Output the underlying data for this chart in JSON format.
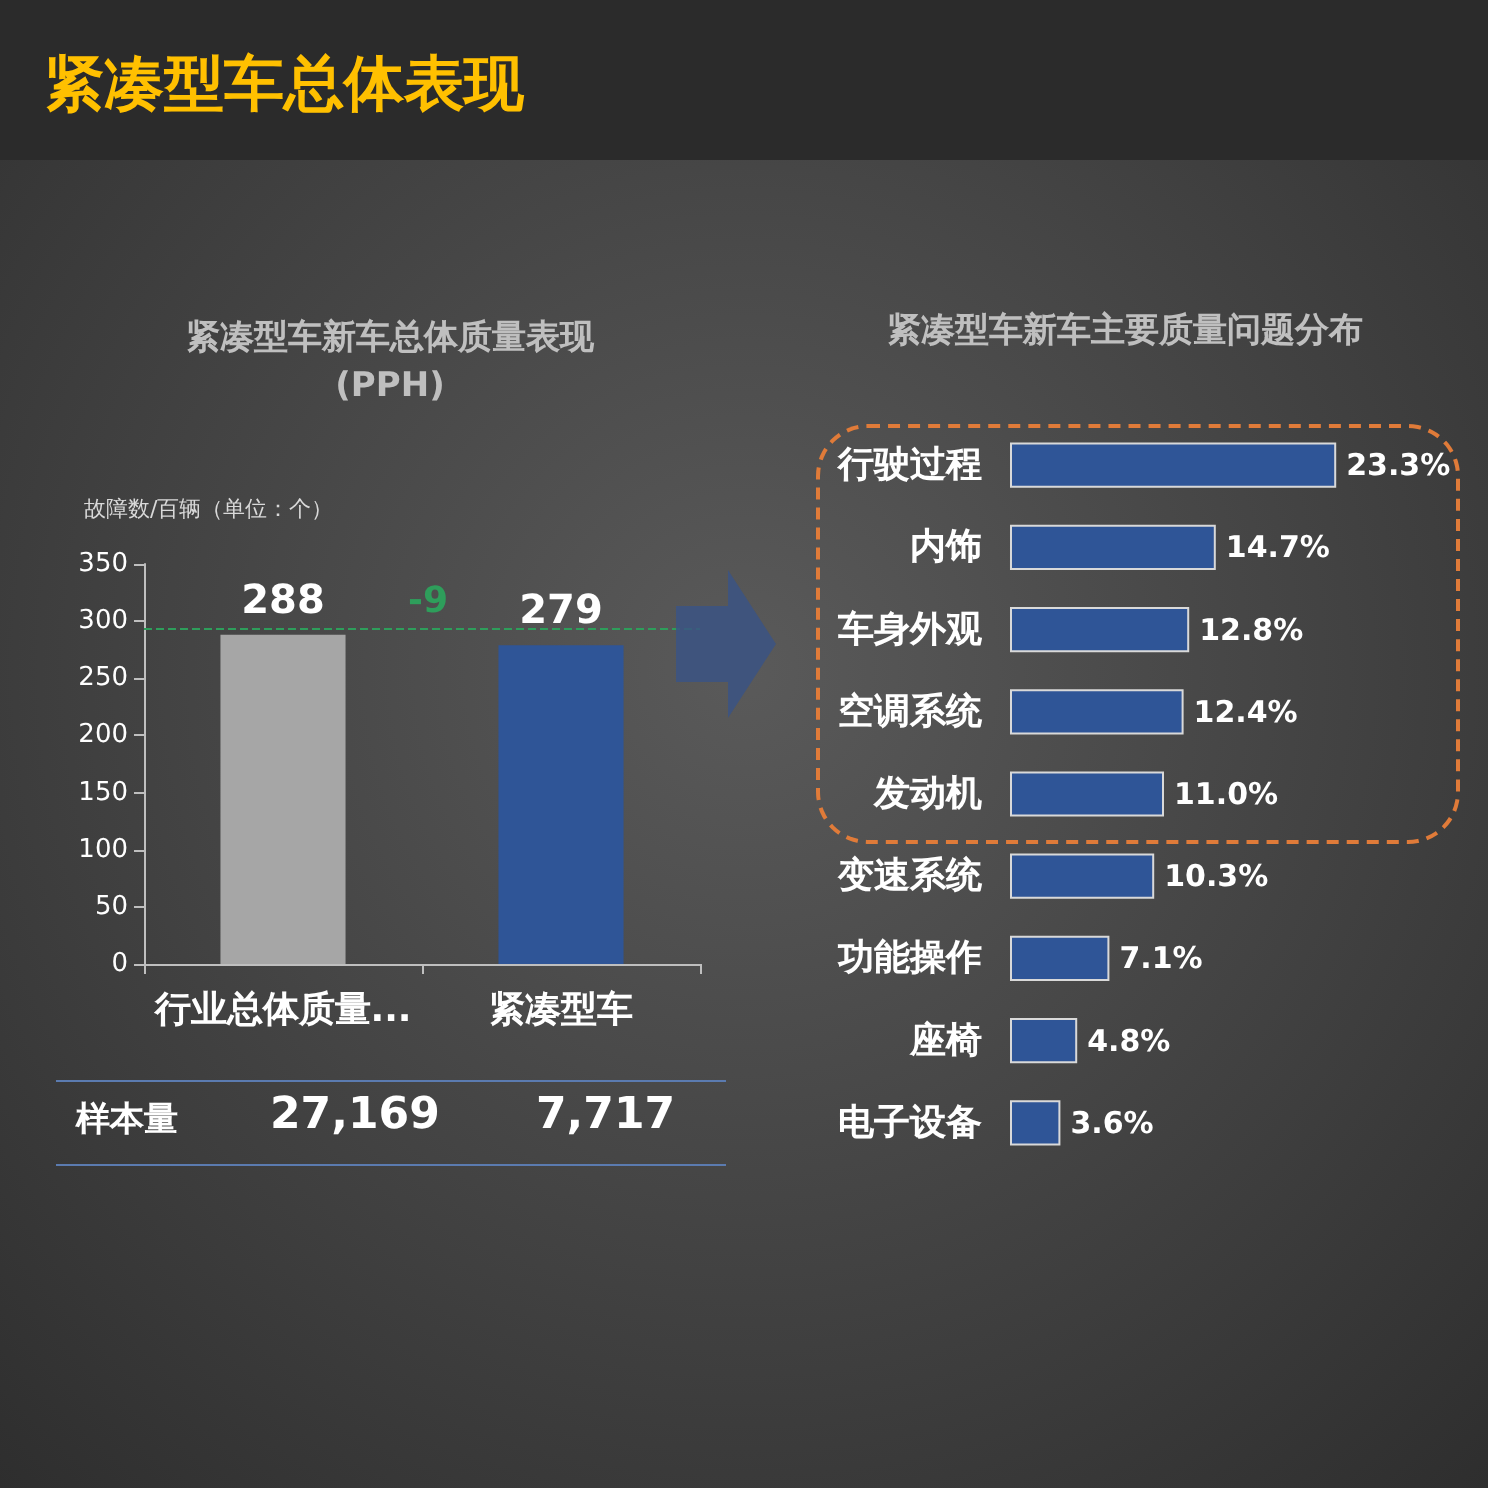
{
  "chart_data": [
    {
      "type": "bar",
      "title": "紧凑型车新车总体质量表现\n(PPH)",
      "ylabel": "故障数/百辆（单位：个）",
      "categories": [
        "行业总体质量...",
        "紧凑型车"
      ],
      "values": [
        288,
        279
      ],
      "colors": [
        "#a6a6a6",
        "#2f5597"
      ],
      "data_labels": true,
      "ylim": [
        0,
        350
      ],
      "yticks": [
        0,
        50,
        100,
        150,
        200,
        250,
        300,
        350
      ],
      "grid": false,
      "ref_lines": [
        {
          "axis": "y",
          "value": 294,
          "color": "#2e9e5b",
          "line_style": "dashed"
        }
      ],
      "annotations": [
        "紧凑型车总体表现",
        "-9",
        "样本量",
        "27,169",
        "7,717"
      ]
    },
    {
      "type": "bar",
      "orientation": "horizontal",
      "title": "紧凑型车新车主要质量问题分布",
      "categories": [
        "行驶过程",
        "内饰",
        "车身外观",
        "空调系统",
        "发动机",
        "变速系统",
        "功能操作",
        "座椅",
        "电子设备"
      ],
      "values": [
        23.3,
        14.7,
        12.8,
        12.4,
        11.0,
        10.3,
        7.1,
        4.8,
        3.6
      ],
      "color": "#2f5597",
      "value_labels": [
        "23.3%",
        "14.7%",
        "12.8%",
        "12.4%",
        "11.0%",
        "10.3%",
        "7.1%",
        "4.8%",
        "3.6%"
      ],
      "tick_labels": "y",
      "grid": false
    }
  ]
}
